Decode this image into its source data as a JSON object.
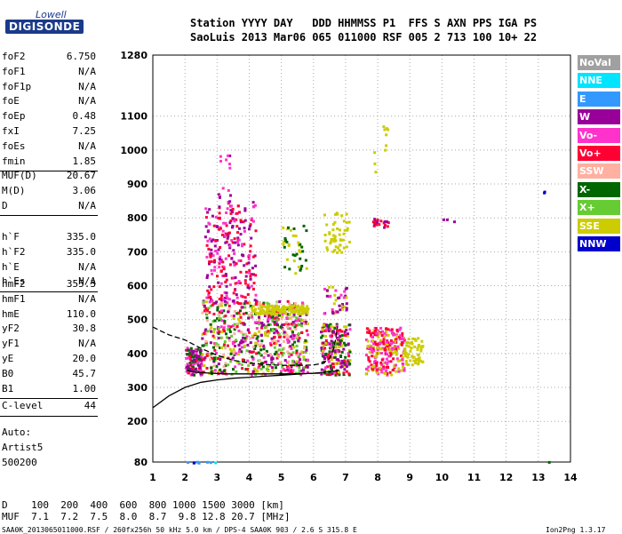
{
  "logo": {
    "top": "Lowell",
    "main": "DIGISONDE"
  },
  "header": {
    "line1": "Station YYYY DAY   DDD HHMMSS P1  FFS S AXN PPS IGA PS",
    "line2": "SaoLuis 2013 Mar06 065 011000 RSF 005 2 713 100 10+ 22"
  },
  "params_group1": [
    {
      "name": "foF2",
      "value": "6.750"
    },
    {
      "name": "foF1",
      "value": "N/A"
    },
    {
      "name": "foF1p",
      "value": "N/A"
    },
    {
      "name": "foE",
      "value": "N/A"
    },
    {
      "name": "foEp",
      "value": "0.48"
    },
    {
      "name": "fxI",
      "value": "7.25"
    },
    {
      "name": "foEs",
      "value": "N/A"
    },
    {
      "name": "fmin",
      "value": "1.85"
    }
  ],
  "params_group2": [
    {
      "name": "MUF(D)",
      "value": "20.67"
    },
    {
      "name": "M(D)",
      "value": "3.06"
    },
    {
      "name": "D",
      "value": "N/A"
    }
  ],
  "params_group3": [
    {
      "name": "h`F",
      "value": "335.0"
    },
    {
      "name": "h`F2",
      "value": "335.0"
    },
    {
      "name": "h`E",
      "value": "N/A"
    },
    {
      "name": "h`Es",
      "value": "N/A"
    }
  ],
  "params_group4": [
    {
      "name": "hmF2",
      "value": "355.3"
    },
    {
      "name": "hmF1",
      "value": "N/A"
    },
    {
      "name": "hmE",
      "value": "110.0"
    },
    {
      "name": "yF2",
      "value": "30.8"
    },
    {
      "name": "yF1",
      "value": "N/A"
    },
    {
      "name": "yE",
      "value": "20.0"
    },
    {
      "name": "B0",
      "value": "45.7"
    },
    {
      "name": "B1",
      "value": "1.00"
    }
  ],
  "params_group5": [
    {
      "name": "C-level",
      "value": "44"
    }
  ],
  "auto": [
    "Auto:",
    "Artist5",
    "500200"
  ],
  "footer": {
    "d_line": "D    100  200  400  600  800 1000 1500 3000 [km]",
    "muf_line": "MUF  7.1  7.2  7.5  8.0  8.7  9.8 12.8 20.7 [MHz]",
    "bottom": "SAA0K_2013065011000.RSF / 260fx256h 50 kHz 5.0 km / DPS-4 SAA0K 903 / 2.6 S 315.8 E",
    "version": "Ion2Png 1.3.17"
  },
  "legend": [
    {
      "label": "NoVal",
      "color": "#a0a0a0"
    },
    {
      "label": "NNE",
      "color": "#00e5ff"
    },
    {
      "label": "E",
      "color": "#3399ff"
    },
    {
      "label": "W",
      "color": "#990099"
    },
    {
      "label": "Vo-",
      "color": "#ff33cc"
    },
    {
      "label": "Vo+",
      "color": "#ff0033"
    },
    {
      "label": "SSW",
      "color": "#ffb0a0"
    },
    {
      "label": "X-",
      "color": "#006600"
    },
    {
      "label": "X+",
      "color": "#66cc33"
    },
    {
      "label": "SSE",
      "color": "#cccc00"
    },
    {
      "label": "NNW",
      "color": "#0000cc"
    }
  ],
  "chart_data": {
    "type": "scatter",
    "x_ticks": [
      "1",
      "2",
      "3",
      "4",
      "5",
      "6",
      "7",
      "8",
      "9",
      "10",
      "11",
      "12",
      "13",
      "14"
    ],
    "y_ticks": [
      "80",
      "200",
      "300",
      "400",
      "500",
      "600",
      "700",
      "800",
      "900",
      "1000",
      "1100",
      "1280"
    ],
    "xlim": [
      1,
      14
    ],
    "ylim": [
      80,
      1280
    ],
    "grid": true,
    "legend_position": "right",
    "traces": [
      {
        "name": "profile",
        "values": [
          [
            1.0,
            240
          ],
          [
            1.5,
            275
          ],
          [
            2.0,
            300
          ],
          [
            2.5,
            315
          ],
          [
            3.0,
            322
          ],
          [
            3.5,
            327
          ],
          [
            4.0,
            330
          ],
          [
            4.5,
            333
          ],
          [
            5.0,
            336
          ],
          [
            5.5,
            339
          ],
          [
            6.0,
            342
          ],
          [
            6.5,
            346
          ],
          [
            6.8,
            350
          ]
        ]
      },
      {
        "name": "trace_f",
        "values": [
          [
            2.05,
            350
          ],
          [
            2.3,
            345
          ],
          [
            2.8,
            342
          ],
          [
            3.3,
            340
          ],
          [
            4.0,
            340
          ],
          [
            5.0,
            340
          ],
          [
            5.8,
            341
          ],
          [
            6.2,
            342
          ]
        ]
      },
      {
        "name": "trace_f2",
        "values": [
          [
            1.0,
            478
          ],
          [
            1.5,
            455
          ],
          [
            2.0,
            440
          ],
          [
            2.5,
            415
          ],
          [
            3.0,
            395
          ],
          [
            3.5,
            380
          ],
          [
            4.0,
            372
          ],
          [
            4.5,
            368
          ],
          [
            5.0,
            365
          ],
          [
            5.5,
            365
          ],
          [
            6.0,
            366
          ],
          [
            6.3,
            372
          ],
          [
            6.5,
            385
          ],
          [
            6.65,
            420
          ],
          [
            6.75,
            480
          ]
        ]
      }
    ]
  }
}
